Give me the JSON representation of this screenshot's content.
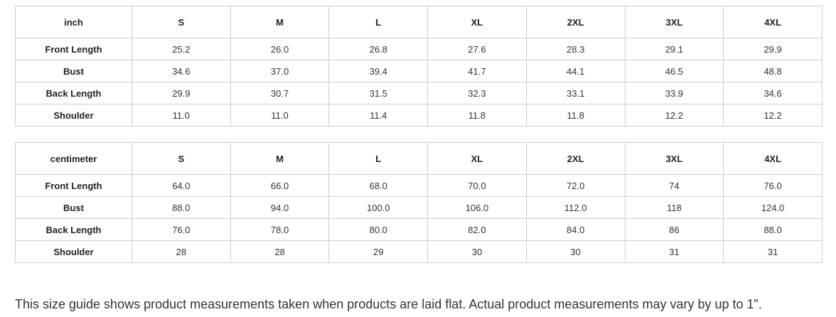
{
  "tables": [
    {
      "unit": "inch",
      "sizes": [
        "S",
        "M",
        "L",
        "XL",
        "2XL",
        "3XL",
        "4XL"
      ],
      "rows": [
        {
          "label": "Front Length",
          "values": [
            "25.2",
            "26.0",
            "26.8",
            "27.6",
            "28.3",
            "29.1",
            "29.9"
          ]
        },
        {
          "label": "Bust",
          "values": [
            "34.6",
            "37.0",
            "39.4",
            "41.7",
            "44.1",
            "46.5",
            "48.8"
          ]
        },
        {
          "label": "Back Length",
          "values": [
            "29.9",
            "30.7",
            "31.5",
            "32.3",
            "33.1",
            "33.9",
            "34.6"
          ]
        },
        {
          "label": "Shoulder",
          "values": [
            "11.0",
            "11.0",
            "11.4",
            "11.8",
            "11.8",
            "12.2",
            "12.2"
          ]
        }
      ]
    },
    {
      "unit": "centimeter",
      "sizes": [
        "S",
        "M",
        "L",
        "XL",
        "2XL",
        "3XL",
        "4XL"
      ],
      "rows": [
        {
          "label": "Front Length",
          "values": [
            "64.0",
            "66.0",
            "68.0",
            "70.0",
            "72.0",
            "74",
            "76.0"
          ]
        },
        {
          "label": "Bust",
          "values": [
            "88.0",
            "94.0",
            "100.0",
            "106.0",
            "112.0",
            "118",
            "124.0"
          ]
        },
        {
          "label": "Back Length",
          "values": [
            "76.0",
            "78.0",
            "80.0",
            "82.0",
            "84.0",
            "86",
            "88.0"
          ]
        },
        {
          "label": "Shoulder",
          "values": [
            "28",
            "28",
            "29",
            "30",
            "30",
            "31",
            "31"
          ]
        }
      ]
    }
  ],
  "note": "This size guide shows product measurements taken when products are laid flat. Actual product measurements may vary by up to 1\"."
}
